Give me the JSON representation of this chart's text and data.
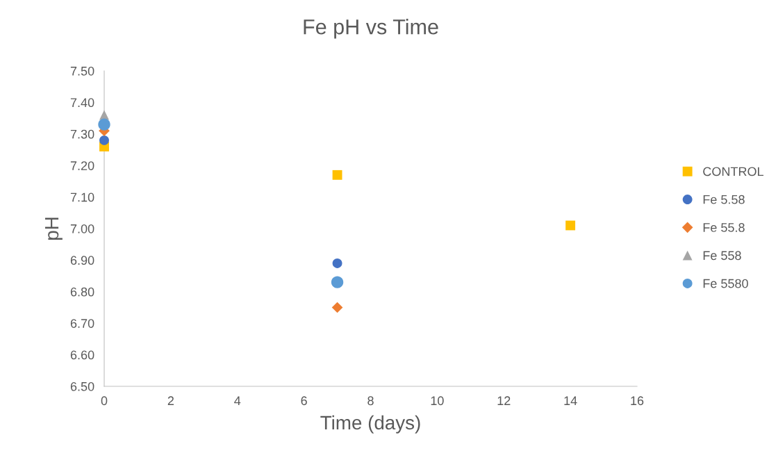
{
  "chart_data": {
    "type": "scatter",
    "title": "Fe pH vs Time",
    "xlabel": "Time (days)",
    "ylabel": "pH",
    "xlim": [
      0,
      16
    ],
    "xticks": [
      0,
      2,
      4,
      6,
      8,
      10,
      12,
      14,
      16
    ],
    "ylim": [
      6.5,
      7.5
    ],
    "yticks": [
      {
        "value": 6.5,
        "label": "6.50"
      },
      {
        "value": 6.6,
        "label": "6.60"
      },
      {
        "value": 6.7,
        "label": "6.70"
      },
      {
        "value": 6.8,
        "label": "6.80"
      },
      {
        "value": 6.9,
        "label": "6.90"
      },
      {
        "value": 7.0,
        "label": "7.00"
      },
      {
        "value": 7.1,
        "label": "7.10"
      },
      {
        "value": 7.2,
        "label": "7.20"
      },
      {
        "value": 7.3,
        "label": "7.30"
      },
      {
        "value": 7.4,
        "label": "7.40"
      },
      {
        "value": 7.5,
        "label": "7.50"
      }
    ],
    "grid": false,
    "legend": "right",
    "series": [
      {
        "name": "CONTROL",
        "color": "#ffc000",
        "marker": "square",
        "x": [
          0,
          7,
          14
        ],
        "values": [
          7.26,
          7.17,
          7.01
        ]
      },
      {
        "name": "Fe 5.58",
        "color": "#4472c4",
        "marker": "circle",
        "x": [
          0,
          7
        ],
        "values": [
          7.28,
          6.89
        ]
      },
      {
        "name": "Fe 55.8",
        "color": "#ed7d31",
        "marker": "diamond",
        "x": [
          0,
          7
        ],
        "values": [
          7.31,
          6.75
        ]
      },
      {
        "name": "Fe 558",
        "color": "#a5a5a5",
        "marker": "triangle",
        "x": [
          0
        ],
        "values": [
          7.36
        ]
      },
      {
        "name": "Fe 5580",
        "color": "#5b9bd5",
        "marker": "circle",
        "x": [
          0,
          7
        ],
        "values": [
          7.33,
          6.83
        ]
      }
    ]
  }
}
